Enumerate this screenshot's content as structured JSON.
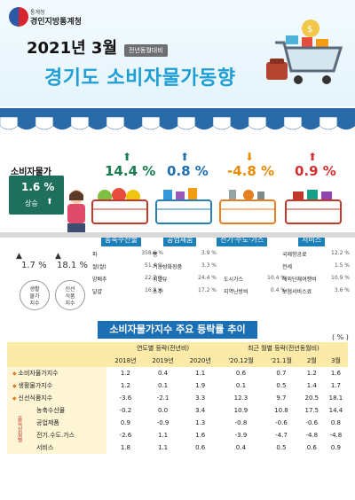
{
  "header": {
    "org_top": "통계청",
    "org_name": "경인지방통계청",
    "date_title": "2021년 3월",
    "compare_tag": "전년동월대비",
    "main_title": "경기도 소비자물가동향"
  },
  "cpi": {
    "label": "소비자물가",
    "value": "1.6 %",
    "direction": "상승"
  },
  "categories": [
    {
      "name": "농축수산물",
      "value": "14.4 %",
      "arrow": "up",
      "color": "#1a7a4f"
    },
    {
      "name": "공업제품",
      "value": "0.8 %",
      "arrow": "up",
      "color": "#1f6fb0"
    },
    {
      "name": "전기·수도·가스",
      "value": "-4.8 %",
      "arrow": "down",
      "color": "#e68a00"
    },
    {
      "name": "서비스",
      "value": "0.9 %",
      "arrow": "up",
      "color": "#d32f2f"
    }
  ],
  "subindex": {
    "living": {
      "value": "1.7 %",
      "label_l1": "생활",
      "label_l2": "물가",
      "label_l3": "지수"
    },
    "fresh": {
      "value": "18.1 %",
      "label_l1": "신선",
      "label_l2": "식품",
      "label_l3": "지수"
    }
  },
  "details": {
    "agri": [
      {
        "item": "파",
        "value": "358.6 %"
      },
      {
        "item": "쌀(쌀)",
        "value": "51.4 %"
      },
      {
        "item": "양배추",
        "value": "22.7 %"
      },
      {
        "item": "달걀",
        "value": "16.8 %"
      }
    ],
    "industrial": [
      {
        "item": "빵",
        "value": "3.9 %"
      },
      {
        "item": "기능성화장품",
        "value": "3.3 %"
      },
      {
        "item": "휘발유",
        "value": "24.4 %"
      },
      {
        "item": "소주",
        "value": "17.2 %"
      }
    ],
    "utilities": [
      {
        "item": "도시가스",
        "value": "10.4 %"
      },
      {
        "item": "지역난방비",
        "value": "0.4 %"
      }
    ],
    "services": [
      {
        "item": "국제항공료",
        "value": "12.2 %"
      },
      {
        "item": "전세",
        "value": "1.5 %"
      },
      {
        "item": "해외단체여행비",
        "value": "10.9 %"
      },
      {
        "item": "보험서비스료",
        "value": "3.6 %"
      }
    ]
  },
  "table": {
    "title": "소비자물가지수 주요 등락률 추이",
    "unit": "( % )",
    "group1": "연도별 등락(전년비)",
    "group2": "최근 월별 등락(전년동월비)",
    "cols": [
      "2018년",
      "2019년",
      "2020년",
      "'20.12월",
      "'21.1월",
      "2월",
      "3월"
    ],
    "side_label": "품목성질별",
    "rows": [
      {
        "label": "소비자물가지수",
        "values": [
          "1.2",
          "0.4",
          "1.1",
          "0.6",
          "0.7",
          "1.2",
          "1.6"
        ]
      },
      {
        "label": "생활물가지수",
        "values": [
          "1.2",
          "0.1",
          "1.9",
          "0.1",
          "0.5",
          "1.4",
          "1.7"
        ]
      },
      {
        "label": "신선식품지수",
        "values": [
          "-3.6",
          "-2.1",
          "3.3",
          "12.3",
          "9.7",
          "20.5",
          "18.1"
        ]
      },
      {
        "label": "농축수산물",
        "values": [
          "-0.2",
          "0.0",
          "3.4",
          "10.9",
          "10.8",
          "17.5",
          "14.4"
        ]
      },
      {
        "label": "공업제품",
        "values": [
          "0.9",
          "-0.9",
          "1.3",
          "-0.8",
          "-0.6",
          "-0.6",
          "0.8"
        ]
      },
      {
        "label": "전기.수도.가스",
        "values": [
          "-2.6",
          "1.1",
          "1.6",
          "-3.9",
          "-4.7",
          "-4.8",
          "-4.8"
        ]
      },
      {
        "label": "서비스",
        "values": [
          "1.8",
          "1.1",
          "0.6",
          "0.4",
          "0.5",
          "0.6",
          "0.9"
        ]
      }
    ]
  }
}
